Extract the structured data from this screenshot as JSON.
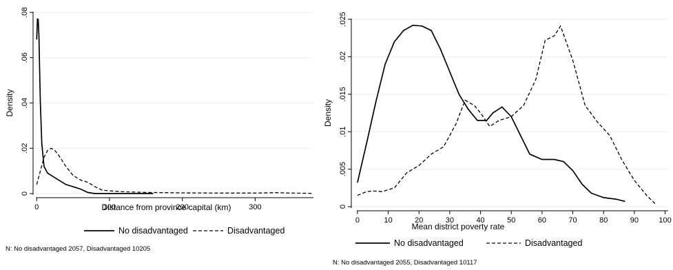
{
  "chart_data": [
    {
      "type": "line",
      "title": "",
      "xlabel": "Distance from province capital (km)",
      "ylabel": "Density",
      "xlim": [
        -5,
        380
      ],
      "ylim": [
        0,
        0.08
      ],
      "xticks": [
        0,
        100,
        200,
        300
      ],
      "xtick_labels": [
        "0",
        "100",
        "200",
        "300"
      ],
      "yticks": [
        0,
        0.02,
        0.04,
        0.06,
        0.08
      ],
      "ytick_labels": [
        "0",
        ".02",
        ".04",
        ".06",
        ".08"
      ],
      "grid": true,
      "legend_position": "bottom",
      "series": [
        {
          "name": "No disadvantaged",
          "style": "solid",
          "x": [
            0,
            1,
            2,
            3,
            4,
            5,
            7,
            10,
            15,
            20,
            30,
            40,
            50,
            60,
            70,
            80,
            100,
            120,
            160
          ],
          "y": [
            0.068,
            0.077,
            0.077,
            0.07,
            0.055,
            0.04,
            0.022,
            0.012,
            0.009,
            0.008,
            0.006,
            0.004,
            0.003,
            0.002,
            0.0005,
            0.0,
            0.0,
            0.0,
            0.0
          ]
        },
        {
          "name": "Disadvantaged",
          "style": "dashed",
          "x": [
            0,
            5,
            10,
            15,
            20,
            25,
            30,
            40,
            50,
            60,
            70,
            80,
            90,
            100,
            120,
            150,
            200,
            250,
            300,
            330,
            350,
            380
          ],
          "y": [
            0.004,
            0.01,
            0.016,
            0.019,
            0.02,
            0.019,
            0.017,
            0.012,
            0.008,
            0.006,
            0.005,
            0.003,
            0.0015,
            0.0012,
            0.0008,
            0.0005,
            0.0003,
            0.0002,
            0.0002,
            0.0004,
            0.0002,
            0.0001
          ]
        }
      ],
      "note": "N: No disadvantaged 2057, Disadvantaged 10205"
    },
    {
      "type": "line",
      "title": "",
      "xlabel": "Mean district poverty rate",
      "ylabel": "Density",
      "xlim": [
        -2,
        101
      ],
      "ylim": [
        0,
        0.025
      ],
      "xticks": [
        0,
        10,
        20,
        30,
        40,
        50,
        60,
        70,
        80,
        90,
        100
      ],
      "xtick_labels": [
        "0",
        "10",
        "20",
        "30",
        "40",
        "50",
        "60",
        "70",
        "80",
        "90",
        "100"
      ],
      "yticks": [
        0,
        0.005,
        0.01,
        0.015,
        0.02,
        0.025
      ],
      "ytick_labels": [
        "0",
        ".005",
        ".01",
        ".015",
        ".02",
        ".025"
      ],
      "grid": true,
      "legend_position": "bottom",
      "series": [
        {
          "name": "No disadvantaged",
          "style": "solid",
          "x": [
            0,
            3,
            6,
            9,
            12,
            15,
            18,
            21,
            24,
            27,
            30,
            33,
            36,
            39,
            42,
            44,
            47,
            50,
            53,
            56,
            60,
            64,
            67,
            70,
            73,
            76,
            80,
            84,
            87
          ],
          "y": [
            0.0032,
            0.0085,
            0.014,
            0.019,
            0.022,
            0.0235,
            0.0242,
            0.0241,
            0.0235,
            0.021,
            0.018,
            0.015,
            0.013,
            0.0115,
            0.0115,
            0.0125,
            0.0133,
            0.012,
            0.0095,
            0.007,
            0.0063,
            0.0063,
            0.006,
            0.0048,
            0.003,
            0.0018,
            0.0012,
            0.001,
            0.0007
          ]
        },
        {
          "name": "Disadvantaged",
          "style": "dashed",
          "x": [
            0,
            3,
            5,
            8,
            12,
            16,
            20,
            24,
            28,
            32,
            35,
            38,
            40,
            43,
            46,
            50,
            54,
            58,
            61,
            64,
            66,
            70,
            74,
            78,
            82,
            86,
            90,
            94,
            97
          ],
          "y": [
            0.0015,
            0.002,
            0.0021,
            0.002,
            0.0025,
            0.0045,
            0.0055,
            0.007,
            0.008,
            0.011,
            0.0142,
            0.0135,
            0.0125,
            0.0107,
            0.0115,
            0.012,
            0.0135,
            0.017,
            0.0222,
            0.0228,
            0.0241,
            0.0195,
            0.0135,
            0.0113,
            0.0095,
            0.0062,
            0.0035,
            0.0015,
            0.0003
          ]
        }
      ],
      "note": "N: No disadvantaged 2055, Disadvantaged 10117"
    }
  ]
}
